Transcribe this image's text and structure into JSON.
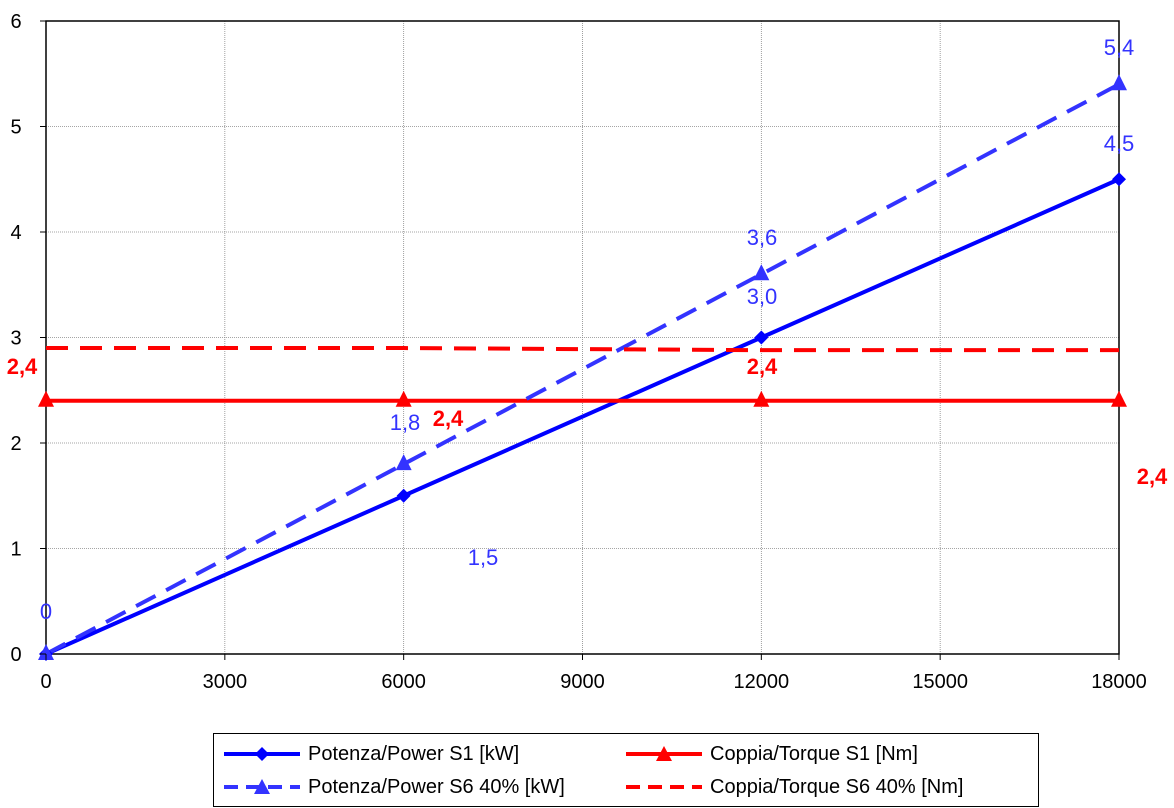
{
  "chart_data": {
    "type": "line",
    "title": "",
    "xlabel": "",
    "ylabel": "",
    "x": [
      0,
      6000,
      12000,
      18000
    ],
    "xlim": [
      0,
      18000
    ],
    "ylim": [
      0,
      6
    ],
    "x_ticks": [
      "0",
      "3000",
      "6000",
      "9000",
      "12000",
      "15000",
      "18000"
    ],
    "y_ticks": [
      "0",
      "1",
      "2",
      "3",
      "4",
      "5",
      "6"
    ],
    "grid": true,
    "legend_position": "bottom",
    "series": [
      {
        "name": "Potenza/Power S1 [kW]",
        "values": [
          0,
          1.5,
          3.0,
          4.5
        ],
        "color": "#0000ff",
        "style": "solid",
        "marker": "diamond"
      },
      {
        "name": "Coppia/Torque S1 [Nm]",
        "values": [
          2.4,
          2.4,
          2.4,
          2.4
        ],
        "color": "#ff0000",
        "style": "solid",
        "marker": "triangle"
      },
      {
        "name": "Potenza/Power S6 40% [kW]",
        "values": [
          0,
          1.8,
          3.6,
          5.4
        ],
        "color": "#3333ff",
        "style": "dashed",
        "marker": "triangle"
      },
      {
        "name": "Coppia/Torque S6 40% [Nm]",
        "values": [
          2.9,
          2.9,
          2.88,
          2.88
        ],
        "color": "#ff0000",
        "style": "dashed",
        "marker": "none"
      }
    ],
    "data_labels": [
      {
        "text": "0",
        "color": "#3333ff"
      },
      {
        "text": "1,5",
        "color": "#3333ff"
      },
      {
        "text": "1,8",
        "color": "#3333ff"
      },
      {
        "text": "3,0",
        "color": "#3333ff"
      },
      {
        "text": "3,6",
        "color": "#3333ff"
      },
      {
        "text": "4,5",
        "color": "#3333ff"
      },
      {
        "text": "5,4",
        "color": "#3333ff"
      },
      {
        "text": "2,4",
        "color": "#ff0000"
      },
      {
        "text": "2,4",
        "color": "#ff0000"
      },
      {
        "text": "2,4",
        "color": "#ff0000"
      },
      {
        "text": "2,4",
        "color": "#ff0000"
      }
    ]
  }
}
